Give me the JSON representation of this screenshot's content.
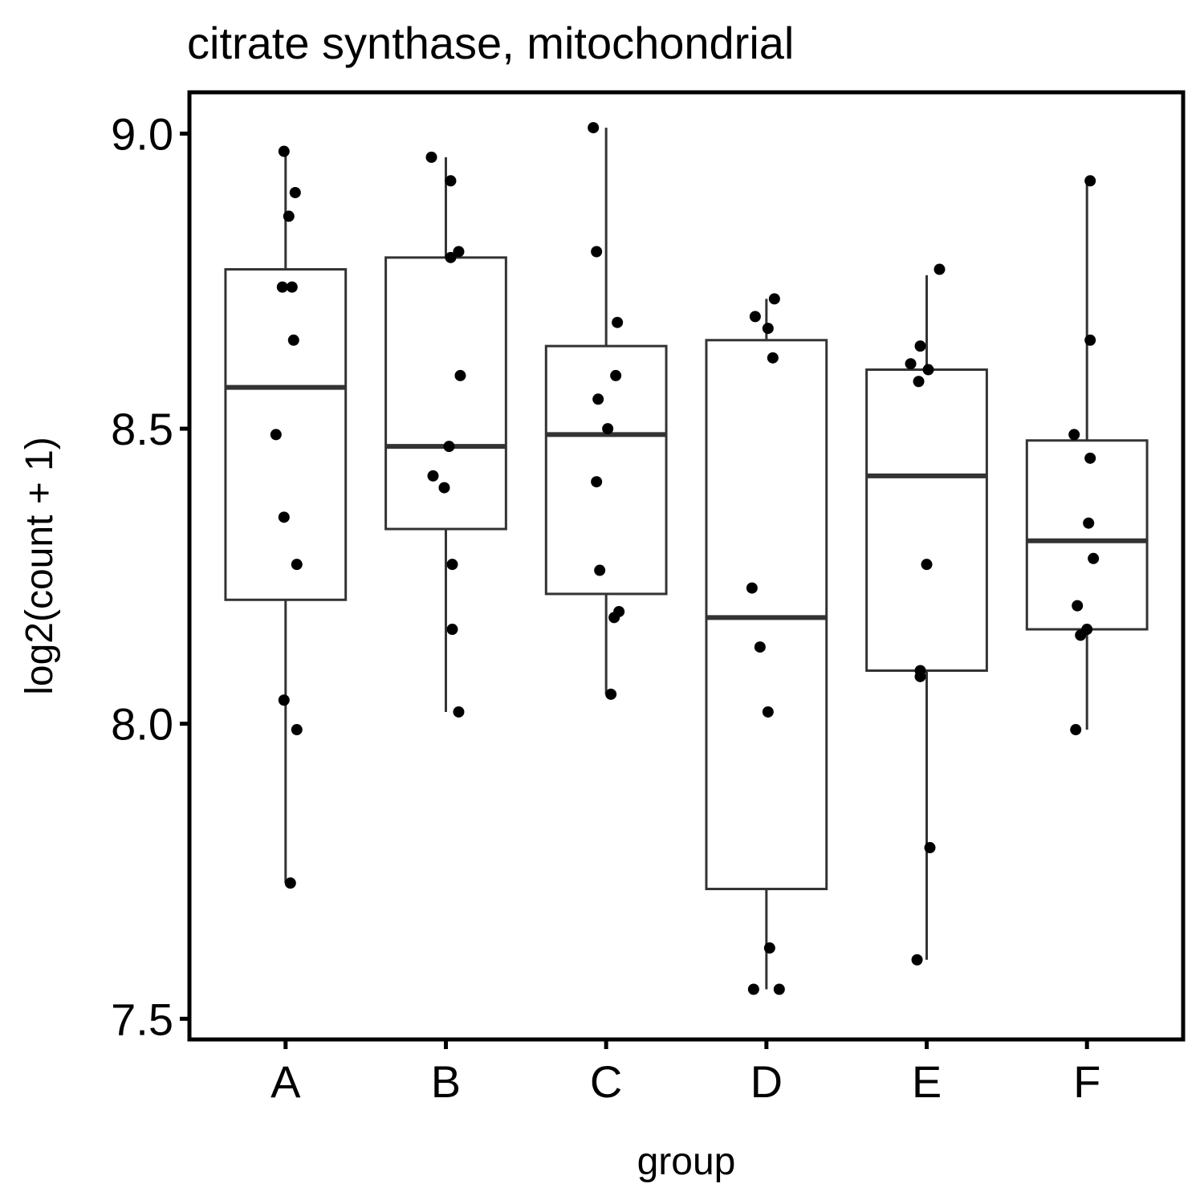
{
  "chart_data": {
    "type": "boxplot",
    "title": "citrate synthase, mitochondrial",
    "xlabel": "group",
    "ylabel": "log2(count + 1)",
    "categories": [
      "A",
      "B",
      "C",
      "D",
      "E",
      "F"
    ],
    "ylim": [
      7.465,
      9.07
    ],
    "yticks": [
      7.5,
      8.0,
      8.5,
      9.0
    ],
    "ytick_labels": [
      "7.5",
      "8.0",
      "8.5",
      "9.0"
    ],
    "grid": false,
    "legend": "none",
    "box_fill": "#ffffff",
    "box_stroke": "#333333",
    "point_color": "#000000",
    "boxes": [
      {
        "group": "A",
        "q1": 8.21,
        "median": 8.57,
        "q3": 8.77,
        "whisker_low": 7.73,
        "whisker_high": 8.97
      },
      {
        "group": "B",
        "q1": 8.33,
        "median": 8.47,
        "q3": 8.79,
        "whisker_low": 8.02,
        "whisker_high": 8.96
      },
      {
        "group": "C",
        "q1": 8.22,
        "median": 8.49,
        "q3": 8.64,
        "whisker_low": 8.05,
        "whisker_high": 9.01
      },
      {
        "group": "D",
        "q1": 7.72,
        "median": 8.18,
        "q3": 8.65,
        "whisker_low": 7.55,
        "whisker_high": 8.72
      },
      {
        "group": "E",
        "q1": 8.09,
        "median": 8.42,
        "q3": 8.6,
        "whisker_low": 7.6,
        "whisker_high": 8.76
      },
      {
        "group": "F",
        "q1": 8.16,
        "median": 8.31,
        "q3": 8.48,
        "whisker_low": 7.99,
        "whisker_high": 8.92
      }
    ],
    "points": [
      {
        "group": "A",
        "values": [
          8.97,
          8.9,
          8.86,
          8.74,
          8.74,
          8.65,
          8.49,
          8.35,
          8.27,
          8.04,
          7.99,
          7.73
        ],
        "jitter": [
          -0.01,
          0.06,
          0.02,
          -0.02,
          0.04,
          0.05,
          -0.06,
          -0.01,
          0.07,
          -0.01,
          0.07,
          0.03
        ]
      },
      {
        "group": "B",
        "values": [
          8.96,
          8.92,
          8.8,
          8.79,
          8.59,
          8.47,
          8.42,
          8.4,
          8.27,
          8.16,
          8.02
        ],
        "jitter": [
          -0.09,
          0.03,
          0.08,
          0.03,
          0.09,
          0.02,
          -0.08,
          -0.01,
          0.04,
          0.04,
          0.08
        ]
      },
      {
        "group": "C",
        "values": [
          9.01,
          8.8,
          8.68,
          8.59,
          8.55,
          8.5,
          8.41,
          8.26,
          8.19,
          8.18,
          8.05
        ],
        "jitter": [
          -0.08,
          -0.06,
          0.07,
          0.06,
          -0.05,
          0.01,
          -0.06,
          -0.04,
          0.08,
          0.05,
          0.03
        ]
      },
      {
        "group": "D",
        "values": [
          8.72,
          8.69,
          8.67,
          8.62,
          8.23,
          8.13,
          8.02,
          7.62,
          7.55,
          7.55
        ],
        "jitter": [
          0.05,
          -0.07,
          0.01,
          0.04,
          -0.09,
          -0.04,
          0.01,
          0.02,
          -0.08,
          0.08
        ]
      },
      {
        "group": "E",
        "values": [
          8.77,
          8.64,
          8.61,
          8.6,
          8.58,
          8.27,
          8.09,
          8.08,
          7.79,
          7.6
        ],
        "jitter": [
          0.08,
          -0.04,
          -0.1,
          0.01,
          -0.05,
          0.0,
          -0.04,
          -0.04,
          0.02,
          -0.06
        ]
      },
      {
        "group": "F",
        "values": [
          8.92,
          8.65,
          8.49,
          8.45,
          8.34,
          8.28,
          8.2,
          8.16,
          8.15,
          7.99
        ],
        "jitter": [
          0.02,
          0.02,
          -0.08,
          0.02,
          0.01,
          0.04,
          -0.06,
          0.0,
          -0.04,
          -0.07
        ]
      }
    ]
  }
}
